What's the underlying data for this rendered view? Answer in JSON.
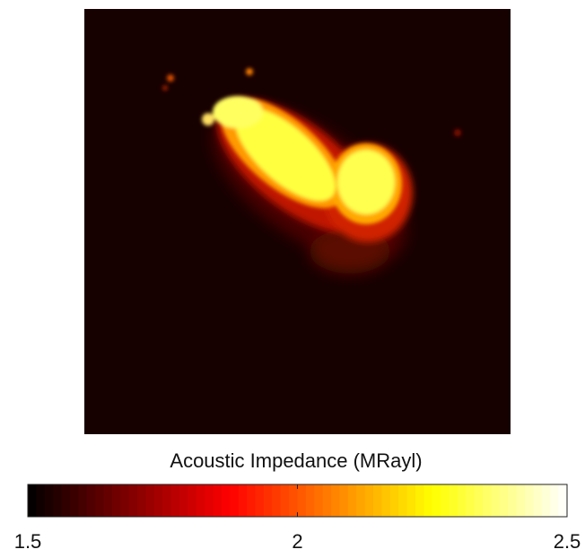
{
  "chart_data": {
    "type": "image",
    "colormap": "hot",
    "colorbar": {
      "label": "Acoustic Impedance (MRayl)",
      "lim": [
        1.5,
        2.5
      ],
      "ticks": [
        1.5,
        2,
        2.5
      ]
    }
  }
}
